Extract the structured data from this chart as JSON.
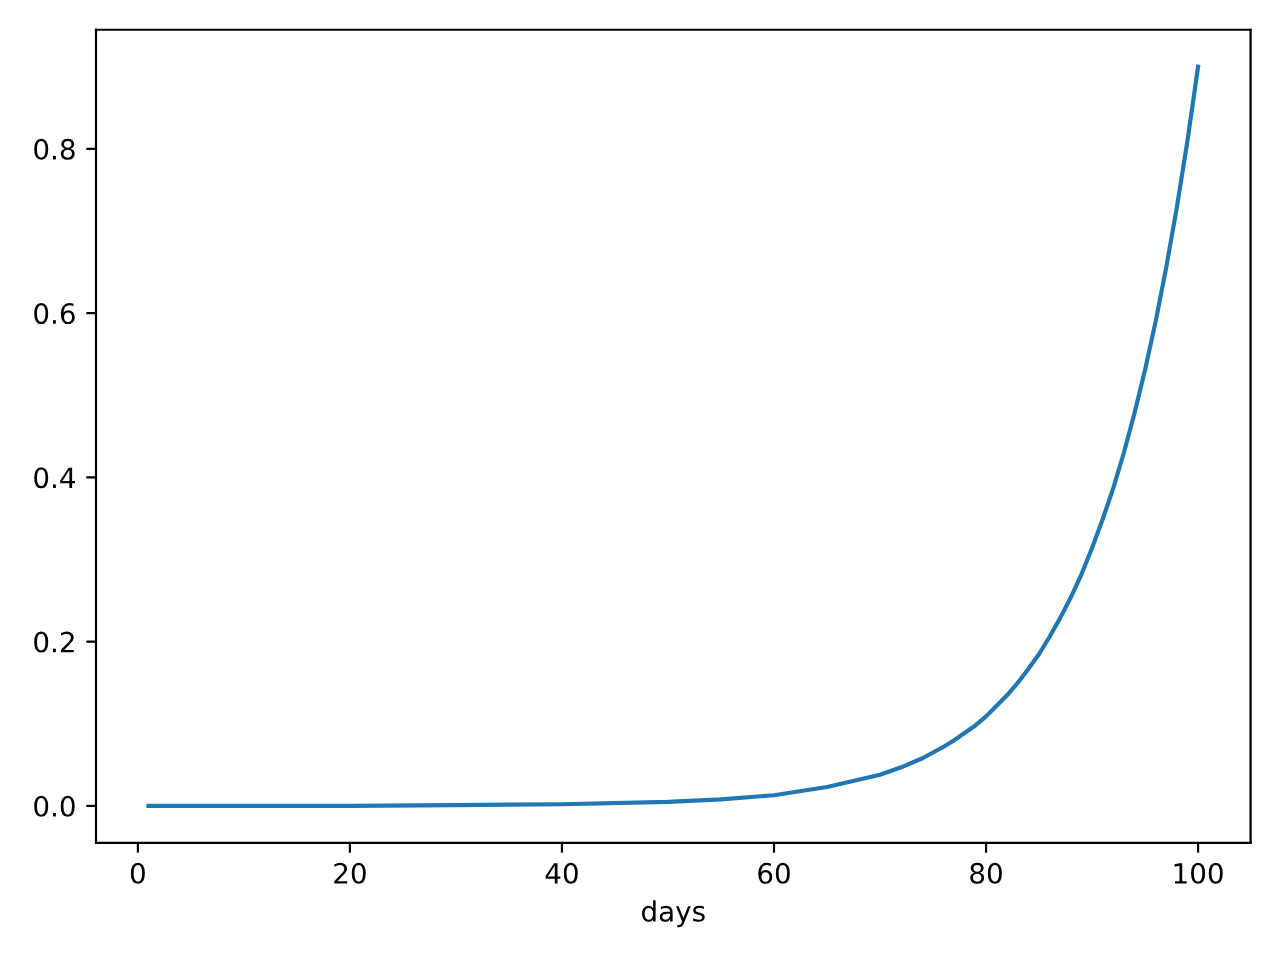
{
  "chart_data": {
    "type": "line",
    "xlabel": "days",
    "x": [
      1,
      10,
      20,
      30,
      40,
      50,
      55,
      60,
      65,
      70,
      72,
      74,
      75,
      76,
      77,
      78,
      79,
      80,
      81,
      82,
      83,
      84,
      85,
      86,
      87,
      88,
      89,
      90,
      91,
      92,
      93,
      94,
      95,
      96,
      97,
      98,
      99,
      100
    ],
    "series": [
      {
        "color": "#1f77b4",
        "values": [
          0.0,
          0.0,
          0.0,
          0.001,
          0.002,
          0.005,
          0.008,
          0.013,
          0.023,
          0.038,
          0.047,
          0.058,
          0.065,
          0.072,
          0.08,
          0.089,
          0.098,
          0.109,
          0.122,
          0.135,
          0.15,
          0.167,
          0.185,
          0.206,
          0.229,
          0.254,
          0.282,
          0.314,
          0.349,
          0.387,
          0.43,
          0.478,
          0.531,
          0.59,
          0.656,
          0.729,
          0.81,
          0.9
        ]
      }
    ],
    "xlim": [
      -3.95,
      104.95
    ],
    "ylim": [
      -0.045,
      0.945
    ],
    "xticks": [
      0,
      20,
      40,
      60,
      80,
      100
    ],
    "yticks": [
      {
        "value": 0,
        "label": "0.0"
      },
      {
        "value": 0.2,
        "label": "0.2"
      },
      {
        "value": 0.4,
        "label": "0.4"
      },
      {
        "value": 0.6,
        "label": "0.6"
      },
      {
        "value": 0.8,
        "label": "0.8"
      }
    ],
    "grid": false,
    "legend": false,
    "marker": "none",
    "line_style": "solid"
  }
}
